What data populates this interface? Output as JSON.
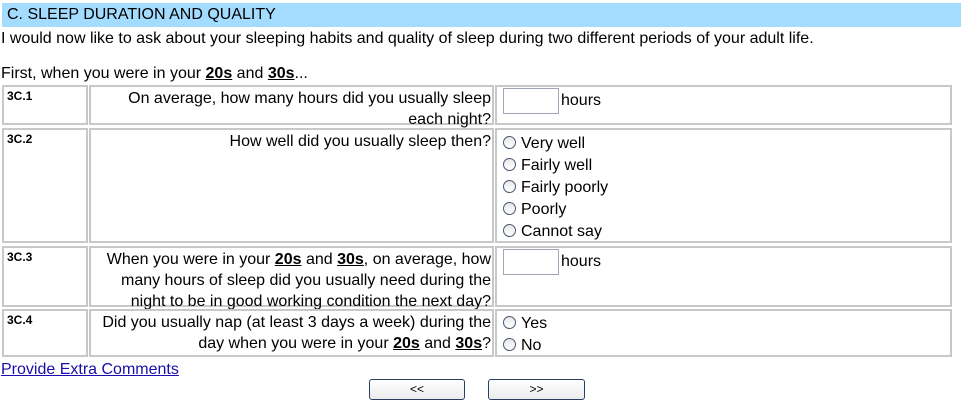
{
  "section_title": "C. SLEEP DURATION AND QUALITY",
  "intro": "I would now like to ask about your sleeping habits and quality of sleep during two different periods of your adult life.",
  "lead": {
    "pre": "First, when you were in your ",
    "b1": "20s",
    "mid": " and ",
    "b2": "30s",
    "post": "..."
  },
  "questions": [
    {
      "id": "3C.1",
      "text": "On average, how many hours did you usually sleep each night?",
      "unit": "hours"
    },
    {
      "id": "3C.2",
      "text": "How well did you usually sleep then?",
      "options": [
        "Very well",
        "Fairly well",
        "Fairly poorly",
        "Poorly",
        "Cannot say"
      ]
    },
    {
      "id": "3C.3",
      "pre": "When you were in your ",
      "b1": "20s",
      "mid": " and ",
      "b2": "30s",
      "post": ", on average, how many hours of sleep did you usually need during the night to be in good working condition the next day?",
      "unit": "hours"
    },
    {
      "id": "3C.4",
      "pre": "Did you usually nap (at least 3 days a week) during the day when you were in your ",
      "b1": "20s",
      "mid": " and ",
      "b2": "30s",
      "post": "?",
      "options": [
        "Yes",
        "No"
      ]
    }
  ],
  "extra_comments_link": "Provide Extra Comments",
  "nav": {
    "prev": "<<",
    "next": ">>"
  },
  "colors": {
    "header_bg": "#a4dcff",
    "link": "#1a0dab"
  }
}
